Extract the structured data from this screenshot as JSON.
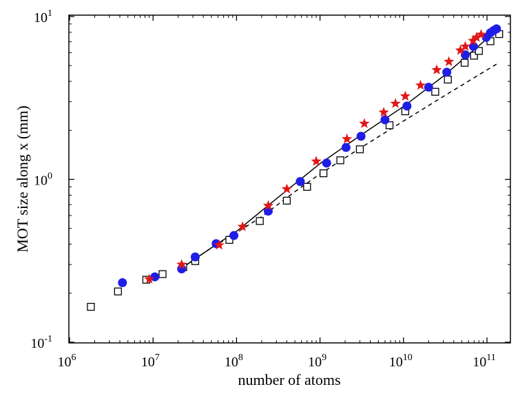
{
  "chart_data": {
    "type": "scatter",
    "title": "",
    "xlabel": "number of atoms",
    "ylabel": "MOT size along x (mm)",
    "xscale": "log",
    "yscale": "log",
    "xlim": [
      1000000,
      200000000000
    ],
    "ylim": [
      0.1,
      10
    ],
    "x_ticks": [
      {
        "base": "10",
        "exp": "6",
        "value": 1000000
      },
      {
        "base": "10",
        "exp": "7",
        "value": 10000000
      },
      {
        "base": "10",
        "exp": "8",
        "value": 100000000
      },
      {
        "base": "10",
        "exp": "9",
        "value": 1000000000
      },
      {
        "base": "10",
        "exp": "10",
        "value": 10000000000
      },
      {
        "base": "10",
        "exp": "11",
        "value": 100000000000
      }
    ],
    "y_ticks": [
      {
        "base": "10",
        "exp": "-1",
        "value": 0.1
      },
      {
        "base": "10",
        "exp": "0",
        "value": 1
      },
      {
        "base": "10",
        "exp": "1",
        "value": 10
      }
    ],
    "grid": false,
    "legend": false,
    "series": [
      {
        "marker": "open-square",
        "color": "#000000",
        "points": [
          [
            1800000.0,
            0.165
          ],
          [
            3800000.0,
            0.205
          ],
          [
            8300000.0,
            0.242
          ],
          [
            13000000.0,
            0.262
          ],
          [
            23000000.0,
            0.289
          ],
          [
            32000000.0,
            0.315
          ],
          [
            82000000.0,
            0.425
          ],
          [
            190000000.0,
            0.555
          ],
          [
            400000000.0,
            0.74
          ],
          [
            700000000.0,
            0.9
          ],
          [
            1100000000.0,
            1.09
          ],
          [
            1750000000.0,
            1.31
          ],
          [
            3000000000.0,
            1.53
          ],
          [
            6800000000.0,
            2.15
          ],
          [
            10500000000.0,
            2.62
          ],
          [
            24000000000.0,
            3.45
          ],
          [
            34000000000.0,
            4.1
          ],
          [
            54000000000.0,
            5.2
          ],
          [
            70000000000.0,
            5.75
          ],
          [
            80000000000.0,
            6.15
          ],
          [
            110000000000.0,
            7.05
          ],
          [
            140000000000.0,
            7.8
          ]
        ]
      },
      {
        "marker": "filled-circle",
        "color": "#1e1ee6",
        "points": [
          [
            4300000.0,
            0.232
          ],
          [
            10500000.0,
            0.252
          ],
          [
            22000000.0,
            0.282
          ],
          [
            32000000.0,
            0.334
          ],
          [
            57000000.0,
            0.403
          ],
          [
            93000000.0,
            0.452
          ],
          [
            240000000.0,
            0.638
          ],
          [
            580000000.0,
            0.97
          ],
          [
            1200000000.0,
            1.26
          ],
          [
            2050000000.0,
            1.57
          ],
          [
            3100000000.0,
            1.84
          ],
          [
            6000000000.0,
            2.32
          ],
          [
            11000000000.0,
            2.82
          ],
          [
            20000000000.0,
            3.68
          ],
          [
            33000000000.0,
            4.55
          ],
          [
            55000000000.0,
            5.82
          ],
          [
            69000000000.0,
            6.55
          ],
          [
            98000000000.0,
            7.45
          ],
          [
            110000000000.0,
            7.95
          ],
          [
            120000000000.0,
            8.2
          ],
          [
            130000000000.0,
            8.4
          ]
        ]
      },
      {
        "marker": "filled-star",
        "color": "#e01818",
        "points": [
          [
            9000000.0,
            0.244
          ],
          [
            22000000.0,
            0.3
          ],
          [
            62000000.0,
            0.395
          ],
          [
            118000000.0,
            0.512
          ],
          [
            240000000.0,
            0.69
          ],
          [
            400000000.0,
            0.872
          ],
          [
            900000000.0,
            1.29
          ],
          [
            2100000000.0,
            1.77
          ],
          [
            3400000000.0,
            2.2
          ],
          [
            5800000000.0,
            2.58
          ],
          [
            8000000000.0,
            2.92
          ],
          [
            10500000000.0,
            3.24
          ],
          [
            16000000000.0,
            3.78
          ],
          [
            25000000000.0,
            4.7
          ],
          [
            35000000000.0,
            5.28
          ],
          [
            48000000000.0,
            6.2
          ],
          [
            55000000000.0,
            6.55
          ],
          [
            68000000000.0,
            7.1
          ],
          [
            75000000000.0,
            7.45
          ],
          [
            85000000000.0,
            7.75
          ]
        ]
      },
      {
        "style": "solid-line",
        "color": "#000000",
        "points": [
          [
            22000000.0,
            0.285
          ],
          [
            50000000.0,
            0.38
          ],
          [
            100000000.0,
            0.48
          ],
          [
            300000000.0,
            0.76
          ],
          [
            1000000000.0,
            1.25
          ],
          [
            3000000000.0,
            1.85
          ],
          [
            10000000000.0,
            2.8
          ],
          [
            30000000000.0,
            4.3
          ],
          [
            100000000000.0,
            7.3
          ],
          [
            140000000000.0,
            8.5
          ]
        ]
      },
      {
        "style": "dashed-line",
        "color": "#000000",
        "points": [
          [
            22000000.0,
            0.285
          ],
          [
            50000000.0,
            0.38
          ],
          [
            100000000.0,
            0.47
          ],
          [
            200000000.0,
            0.59
          ],
          [
            500000000.0,
            0.84
          ],
          [
            1000000000.0,
            1.08
          ],
          [
            3000000000.0,
            1.55
          ],
          [
            10000000000.0,
            2.28
          ],
          [
            30000000000.0,
            3.23
          ],
          [
            100000000000.0,
            4.7
          ],
          [
            130000000000.0,
            5.1
          ]
        ]
      }
    ]
  }
}
